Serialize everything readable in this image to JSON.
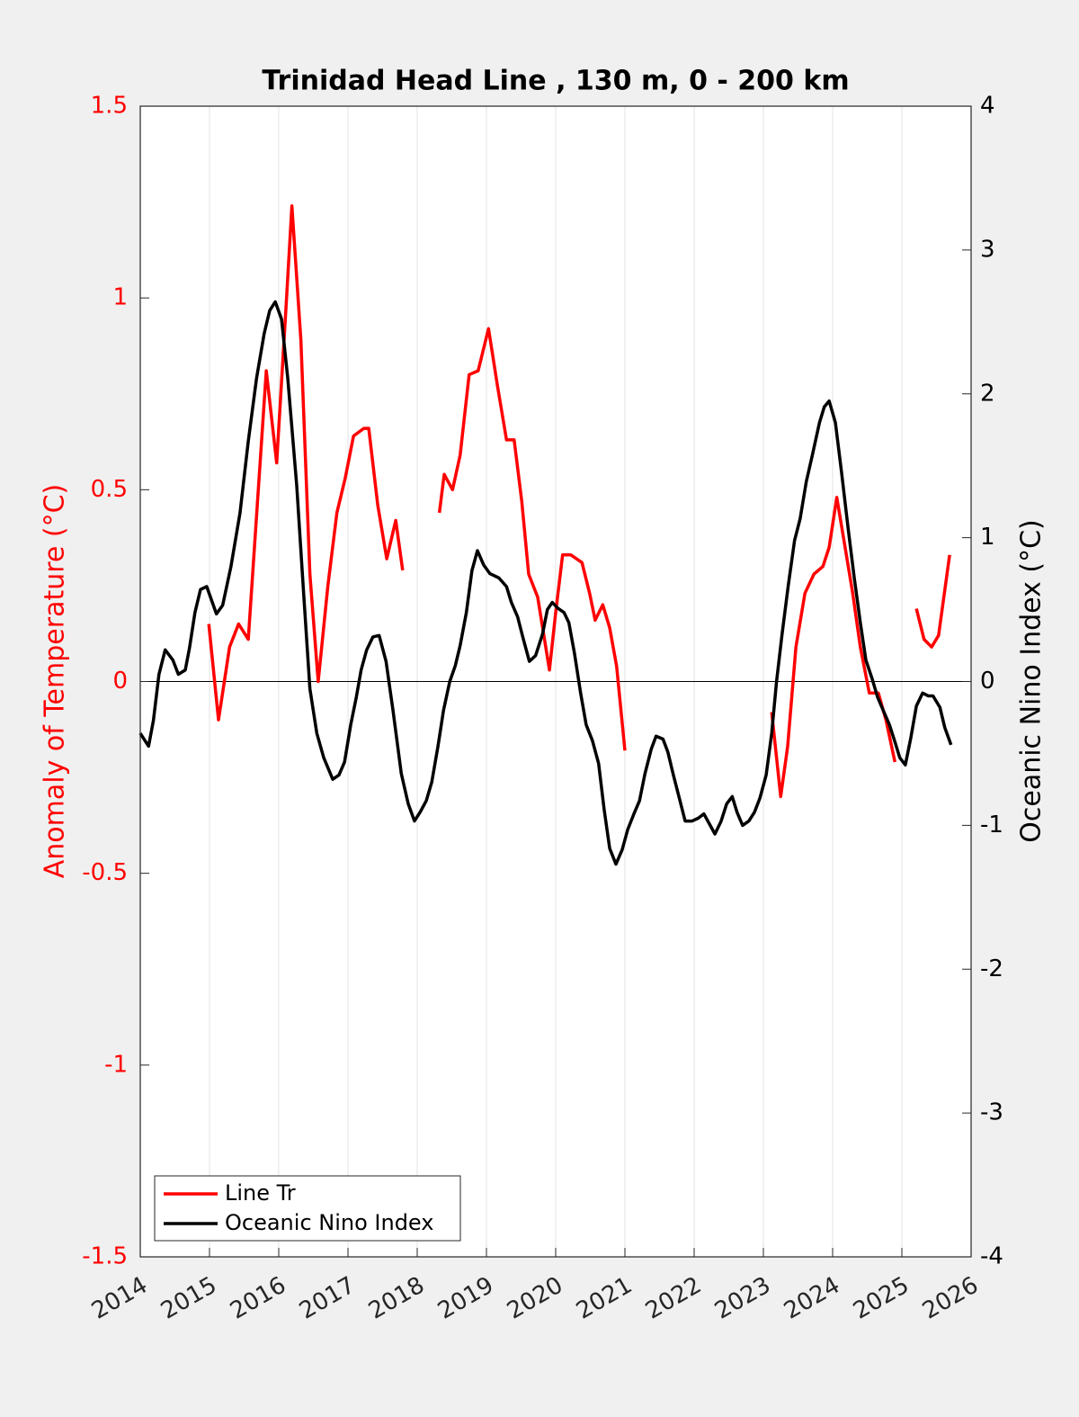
{
  "chart_data": {
    "type": "line",
    "title": "Trinidad Head Line , 130 m, 0 - 200 km",
    "ylabel": "Anomaly of Temperature (°C)",
    "y2label": "Oceanic Nino Index (°C)",
    "xlim": [
      2014,
      2026
    ],
    "xticks": [
      2014,
      2015,
      2016,
      2017,
      2018,
      2019,
      2020,
      2021,
      2022,
      2023,
      2024,
      2025,
      2026
    ],
    "ylim": [
      -1.5,
      1.5
    ],
    "yticks": [
      -1.5,
      -1,
      -0.5,
      0,
      0.5,
      1,
      1.5
    ],
    "y2lim": [
      -4,
      4
    ],
    "y2ticks": [
      -4,
      -3,
      -2,
      -1,
      0,
      1,
      2,
      3,
      4
    ],
    "grid": "x",
    "legend": "lower left",
    "ylabel_color": "#ff0000",
    "series": [
      {
        "name": "Line Tr",
        "color": "#ff0000",
        "axis": "y",
        "x": [
          2014.99,
          2015.13,
          2015.29,
          2015.42,
          2015.56,
          2015.69,
          2015.82,
          2015.97,
          2016.1,
          2016.19,
          2016.32,
          2016.45,
          2016.57,
          2016.71,
          2016.84,
          2016.96,
          2017.08,
          2017.23,
          2017.3,
          2017.43,
          2017.56,
          2017.69,
          2017.79,
          2018.0,
          2018.32,
          2018.39,
          2018.51,
          2018.62,
          2018.75,
          2018.88,
          2019.03,
          2019.16,
          2019.29,
          2019.4,
          2019.51,
          2019.61,
          2019.74,
          2019.91,
          2020.0,
          2020.1,
          2020.22,
          2020.38,
          2020.49,
          2020.57,
          2020.68,
          2020.78,
          2020.88,
          2021.0,
          2022.0,
          2023.12,
          2023.25,
          2023.35,
          2023.47,
          2023.6,
          2023.73,
          2023.86,
          2023.95,
          2024.06,
          2024.18,
          2024.29,
          2024.4,
          2024.53,
          2024.66,
          2024.77,
          2024.9,
          2025.05,
          2025.21,
          2025.32,
          2025.43,
          2025.53,
          2025.69
        ],
        "values": [
          0.15,
          -0.1,
          0.09,
          0.15,
          0.11,
          0.46,
          0.81,
          0.57,
          0.96,
          1.24,
          0.89,
          0.28,
          0.0,
          0.25,
          0.44,
          0.53,
          0.64,
          0.66,
          0.66,
          0.46,
          0.32,
          0.42,
          0.29,
          null,
          0.44,
          0.54,
          0.5,
          0.59,
          0.8,
          0.81,
          0.92,
          0.77,
          0.63,
          0.63,
          0.47,
          0.28,
          0.22,
          0.03,
          0.18,
          0.33,
          0.33,
          0.31,
          0.23,
          0.16,
          0.2,
          0.14,
          0.04,
          -0.18,
          null,
          -0.08,
          -0.3,
          -0.17,
          0.09,
          0.23,
          0.28,
          0.3,
          0.35,
          0.48,
          0.35,
          0.23,
          0.09,
          -0.03,
          -0.03,
          -0.1,
          -0.21,
          null,
          0.19,
          0.11,
          0.09,
          0.12,
          0.33
        ]
      },
      {
        "name": "Oceanic Nino Index",
        "color": "#000000",
        "axis": "y2",
        "x": [
          2014.0,
          2014.12,
          2014.19,
          2014.27,
          2014.36,
          2014.47,
          2014.55,
          2014.65,
          2014.71,
          2014.79,
          2014.87,
          2014.96,
          2015.1,
          2015.19,
          2015.31,
          2015.44,
          2015.56,
          2015.68,
          2015.79,
          2015.87,
          2015.95,
          2016.04,
          2016.13,
          2016.26,
          2016.36,
          2016.45,
          2016.55,
          2016.65,
          2016.78,
          2016.87,
          2016.95,
          2017.04,
          2017.12,
          2017.19,
          2017.27,
          2017.36,
          2017.45,
          2017.55,
          2017.65,
          2017.77,
          2017.87,
          2017.96,
          2018.04,
          2018.13,
          2018.21,
          2018.3,
          2018.38,
          2018.47,
          2018.55,
          2018.62,
          2018.71,
          2018.79,
          2018.87,
          2018.96,
          2019.05,
          2019.18,
          2019.29,
          2019.36,
          2019.45,
          2019.53,
          2019.62,
          2019.71,
          2019.81,
          2019.88,
          2019.95,
          2020.03,
          2020.12,
          2020.19,
          2020.27,
          2020.36,
          2020.44,
          2020.53,
          2020.62,
          2020.7,
          2020.78,
          2020.87,
          2020.96,
          2021.04,
          2021.13,
          2021.21,
          2021.29,
          2021.38,
          2021.45,
          2021.55,
          2021.62,
          2021.7,
          2021.78,
          2021.87,
          2021.97,
          2022.06,
          2022.14,
          2022.22,
          2022.3,
          2022.39,
          2022.47,
          2022.55,
          2022.62,
          2022.7,
          2022.79,
          2022.87,
          2022.95,
          2023.04,
          2023.12,
          2023.19,
          2023.27,
          2023.36,
          2023.45,
          2023.53,
          2023.62,
          2023.71,
          2023.81,
          2023.88,
          2023.95,
          2024.04,
          2024.13,
          2024.22,
          2024.31,
          2024.4,
          2024.48,
          2024.57,
          2024.65,
          2024.73,
          2024.82,
          2024.9,
          2024.97,
          2025.05,
          2025.13,
          2025.21,
          2025.3,
          2025.38,
          2025.45,
          2025.55,
          2025.62,
          2025.71
        ],
        "values": [
          -0.36,
          -0.45,
          -0.27,
          0.05,
          0.22,
          0.15,
          0.05,
          0.08,
          0.23,
          0.48,
          0.64,
          0.66,
          0.47,
          0.53,
          0.8,
          1.17,
          1.67,
          2.11,
          2.42,
          2.58,
          2.64,
          2.52,
          2.11,
          1.36,
          0.61,
          -0.05,
          -0.36,
          -0.53,
          -0.68,
          -0.65,
          -0.56,
          -0.3,
          -0.11,
          0.08,
          0.22,
          0.31,
          0.32,
          0.14,
          -0.2,
          -0.64,
          -0.85,
          -0.97,
          -0.91,
          -0.83,
          -0.7,
          -0.45,
          -0.2,
          0.0,
          0.11,
          0.25,
          0.48,
          0.77,
          0.91,
          0.81,
          0.75,
          0.72,
          0.66,
          0.55,
          0.45,
          0.3,
          0.14,
          0.18,
          0.33,
          0.5,
          0.55,
          0.51,
          0.48,
          0.41,
          0.2,
          -0.08,
          -0.3,
          -0.41,
          -0.57,
          -0.89,
          -1.16,
          -1.27,
          -1.17,
          -1.03,
          -0.92,
          -0.83,
          -0.64,
          -0.47,
          -0.38,
          -0.4,
          -0.49,
          -0.65,
          -0.8,
          -0.97,
          -0.97,
          -0.95,
          -0.92,
          -0.99,
          -1.06,
          -0.97,
          -0.85,
          -0.8,
          -0.91,
          -1.0,
          -0.97,
          -0.91,
          -0.81,
          -0.65,
          -0.36,
          0.0,
          0.33,
          0.67,
          0.98,
          1.13,
          1.39,
          1.58,
          1.8,
          1.91,
          1.95,
          1.8,
          1.45,
          1.08,
          0.73,
          0.41,
          0.15,
          0.02,
          -0.11,
          -0.2,
          -0.3,
          -0.42,
          -0.53,
          -0.58,
          -0.39,
          -0.17,
          -0.08,
          -0.1,
          -0.1,
          -0.18,
          -0.32,
          -0.44
        ]
      }
    ]
  }
}
